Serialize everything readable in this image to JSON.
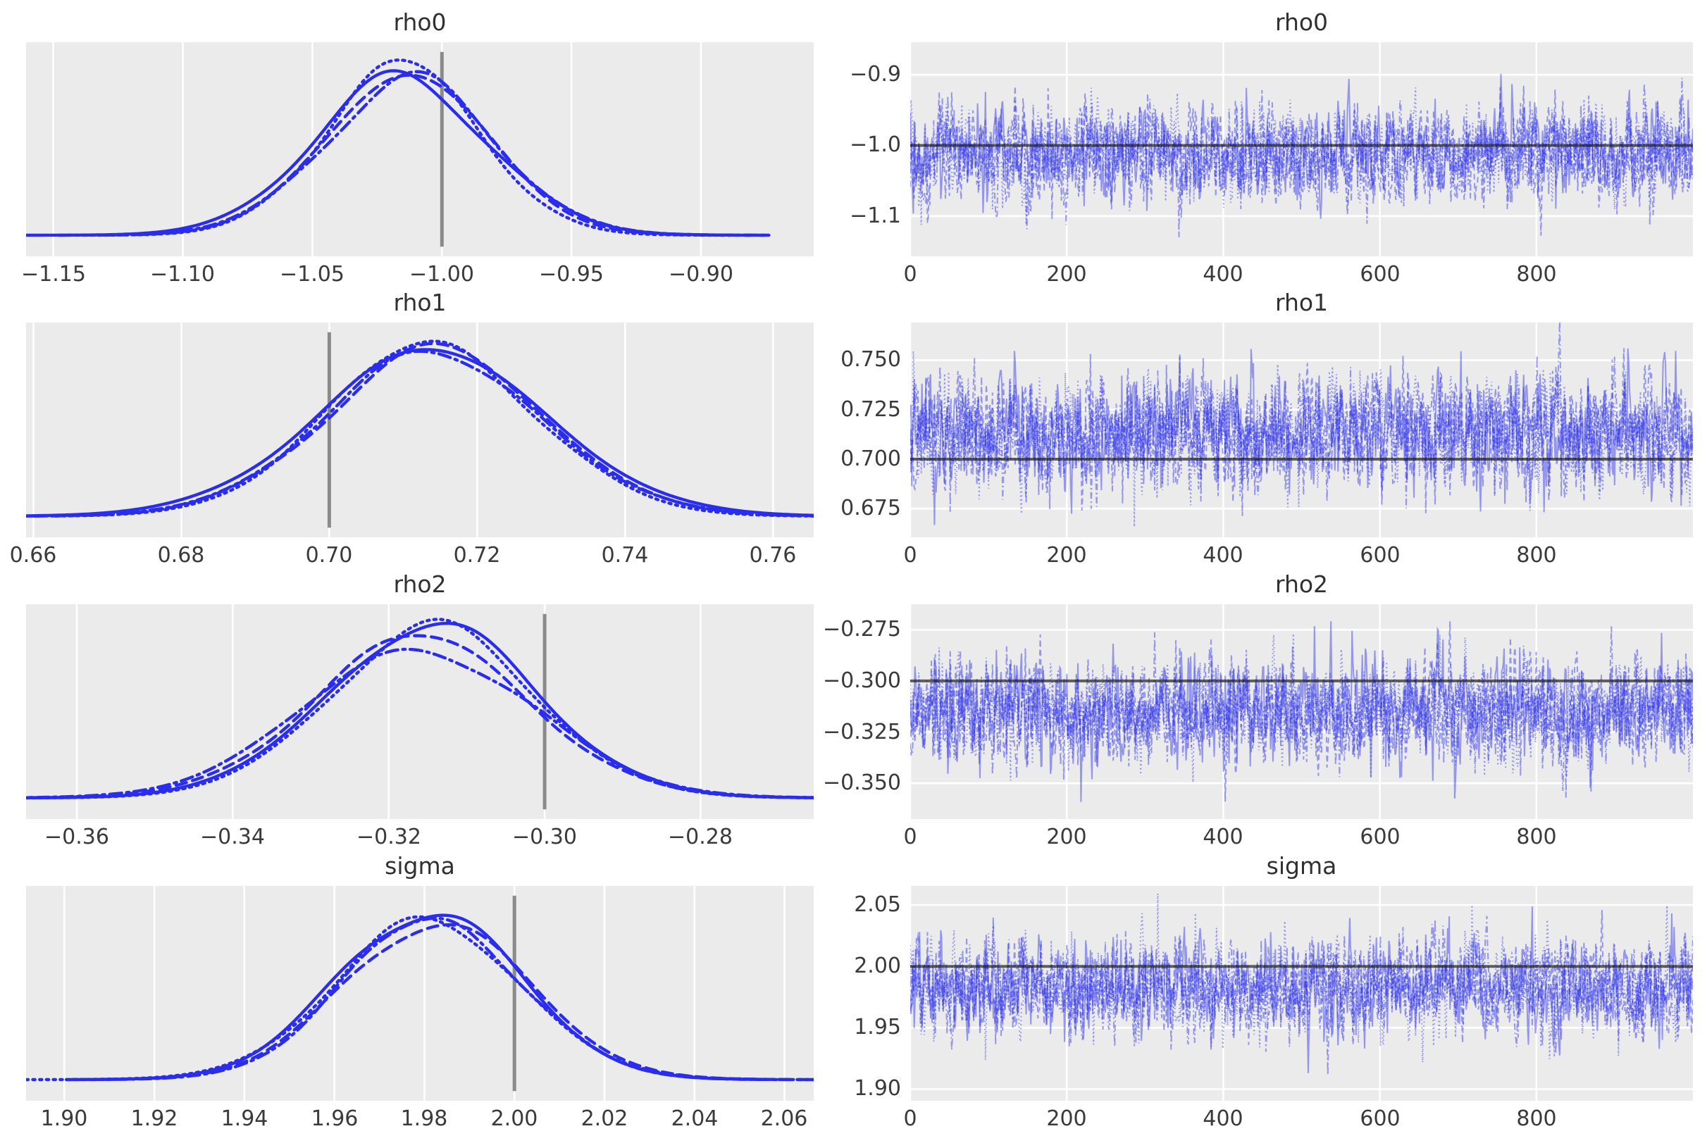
{
  "figure": {
    "panel_background": "#ebebeb",
    "figure_background": "#ffffff",
    "grid_color": "#ffffff",
    "kde_line_color": "#2a2eec",
    "trace_line_color": "#2a2eec",
    "kde_ref_line_color": "#8a8a8a",
    "trace_ref_line_color": "#1a1a1a",
    "text_color": "#3a3a3a",
    "n_chains": 4,
    "chain_linestyles": [
      "solid",
      "dashed",
      "dashdot",
      "dotted"
    ]
  },
  "chart_data": {
    "type": "mcmc-trace-grid",
    "description": "Posterior KDE (left) and sampling trace (right) per parameter, 4 chains distinguished by line style",
    "rows": [
      {
        "param": "rho0",
        "kde": {
          "type": "line",
          "kind": "kde",
          "title": "rho0",
          "xlim": [
            -1.1605,
            -0.8565
          ],
          "xticks": [
            -1.15,
            -1.1,
            -1.05,
            -1.0,
            -0.95,
            -0.9
          ],
          "xtick_labels": [
            "−1.15",
            "−1.10",
            "−1.05",
            "−1.00",
            "−0.95",
            "−0.90"
          ],
          "mean": -1.0145,
          "sd": 0.032,
          "ref_value": -1.0,
          "grid": "vertical"
        },
        "trace": {
          "type": "line",
          "kind": "trace",
          "title": "rho0",
          "xlim": [
            0,
            1000
          ],
          "xticks": [
            0,
            200,
            400,
            600,
            800
          ],
          "xtick_labels": [
            "0",
            "200",
            "400",
            "600",
            "800"
          ],
          "ylim": [
            -1.157,
            -0.854
          ],
          "yticks": [
            -0.9,
            -1.0,
            -1.1
          ],
          "ytick_labels": [
            "−0.9",
            "−1.0",
            "−1.1"
          ],
          "mean": -1.012,
          "sd": 0.034,
          "n_draws": 1000,
          "ref_value": -1.0,
          "grid": "both"
        }
      },
      {
        "param": "rho1",
        "kde": {
          "type": "line",
          "kind": "kde",
          "title": "rho1",
          "xlim": [
            0.659,
            0.7655
          ],
          "xticks": [
            0.66,
            0.68,
            0.7,
            0.72,
            0.74,
            0.76
          ],
          "xtick_labels": [
            "0.66",
            "0.68",
            "0.70",
            "0.72",
            "0.74",
            "0.76"
          ],
          "mean": 0.7135,
          "sd": 0.015,
          "ref_value": 0.7,
          "grid": "vertical"
        },
        "trace": {
          "type": "line",
          "kind": "trace",
          "title": "rho1",
          "xlim": [
            0,
            1000
          ],
          "xticks": [
            0,
            200,
            400,
            600,
            800
          ],
          "xtick_labels": [
            "0",
            "200",
            "400",
            "600",
            "800"
          ],
          "ylim": [
            0.6605,
            0.769
          ],
          "yticks": [
            0.75,
            0.725,
            0.7,
            0.675
          ],
          "ytick_labels": [
            "0.750",
            "0.725",
            "0.700",
            "0.675"
          ],
          "mean": 0.7135,
          "sd": 0.0145,
          "n_draws": 1000,
          "ref_value": 0.7,
          "grid": "both"
        }
      },
      {
        "param": "rho2",
        "kde": {
          "type": "line",
          "kind": "kde",
          "title": "rho2",
          "xlim": [
            -0.3665,
            -0.2655
          ],
          "xticks": [
            -0.36,
            -0.34,
            -0.32,
            -0.3,
            -0.28
          ],
          "xtick_labels": [
            "−0.36",
            "−0.34",
            "−0.32",
            "−0.30",
            "−0.28"
          ],
          "mean": -0.315,
          "sd": 0.0135,
          "ref_value": -0.3,
          "grid": "vertical"
        },
        "trace": {
          "type": "line",
          "kind": "trace",
          "title": "rho2",
          "xlim": [
            0,
            1000
          ],
          "xticks": [
            0,
            200,
            400,
            600,
            800
          ],
          "xtick_labels": [
            "0",
            "200",
            "400",
            "600",
            "800"
          ],
          "ylim": [
            -0.3675,
            -0.2625
          ],
          "yticks": [
            -0.275,
            -0.3,
            -0.325,
            -0.35
          ],
          "ytick_labels": [
            "−0.275",
            "−0.300",
            "−0.325",
            "−0.350"
          ],
          "mean": -0.3145,
          "sd": 0.013,
          "n_draws": 1000,
          "ref_value": -0.3,
          "grid": "both"
        }
      },
      {
        "param": "sigma",
        "kde": {
          "type": "line",
          "kind": "kde",
          "title": "sigma",
          "xlim": [
            1.8915,
            2.0665
          ],
          "xticks": [
            1.9,
            1.92,
            1.94,
            1.96,
            1.98,
            2.0,
            2.02,
            2.04,
            2.06
          ],
          "xtick_labels": [
            "1.90",
            "1.92",
            "1.94",
            "1.96",
            "1.98",
            "2.00",
            "2.02",
            "2.04",
            "2.06"
          ],
          "mean": 1.982,
          "sd": 0.02,
          "ref_value": 2.0,
          "grid": "vertical"
        },
        "trace": {
          "type": "line",
          "kind": "trace",
          "title": "sigma",
          "xlim": [
            0,
            1000
          ],
          "xticks": [
            0,
            200,
            400,
            600,
            800
          ],
          "xtick_labels": [
            "0",
            "200",
            "400",
            "600",
            "800"
          ],
          "ylim": [
            1.8905,
            2.0655
          ],
          "yticks": [
            2.05,
            2.0,
            1.95,
            1.9
          ],
          "ytick_labels": [
            "2.05",
            "2.00",
            "1.95",
            "1.90"
          ],
          "mean": 1.983,
          "sd": 0.019,
          "n_draws": 1000,
          "ref_value": 2.0,
          "grid": "both"
        }
      }
    ]
  }
}
